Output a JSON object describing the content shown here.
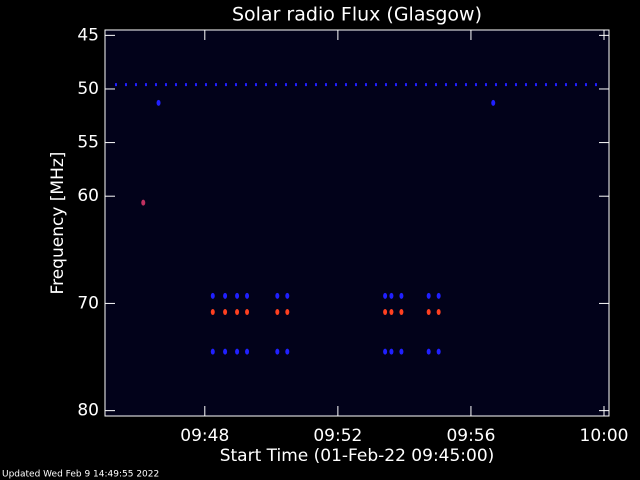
{
  "chart_data": {
    "type": "scatter",
    "title": "Solar radio Flux (Glasgow)",
    "x_label": "Start Time (01-Feb-22 09:45:00)",
    "y_label": "Frequency [MHz]",
    "footer": "Updated Wed Feb  9 14:49:55 2022",
    "xlim": [
      0,
      15.15
    ],
    "xticks": [
      {
        "value": 3,
        "label": "09:48"
      },
      {
        "value": 7,
        "label": "09:52"
      },
      {
        "value": 11,
        "label": "09:56"
      },
      {
        "value": 15,
        "label": "10:00"
      }
    ],
    "ylim": [
      80.5,
      44.5
    ],
    "yticks": [
      45,
      50,
      55,
      60,
      70,
      80
    ],
    "series": [
      {
        "mode": "line",
        "color": "#2020ff",
        "x": [
          0.3,
          15.0
        ],
        "values": [
          49.6,
          49.6
        ]
      },
      {
        "mode": "points",
        "color": "#2020ff",
        "x": [
          1.61,
          11.67
        ],
        "values": [
          51.3,
          51.3
        ]
      },
      {
        "mode": "points",
        "color": "#c03060",
        "x": [
          1.15
        ],
        "values": [
          60.6
        ]
      },
      {
        "mode": "points",
        "color": "#2020ff",
        "x": [
          3.24,
          3.61,
          3.97,
          4.27,
          5.18,
          5.48,
          8.42,
          8.61,
          8.91,
          9.73,
          10.03
        ],
        "values": [
          69.3,
          69.3,
          69.3,
          69.3,
          69.3,
          69.3,
          69.3,
          69.3,
          69.3,
          69.3,
          69.3
        ]
      },
      {
        "mode": "points",
        "color": "#ff4020",
        "x": [
          3.24,
          3.61,
          3.97,
          4.27,
          5.18,
          5.48,
          8.42,
          8.61,
          8.91,
          9.73,
          10.03
        ],
        "values": [
          70.8,
          70.8,
          70.8,
          70.8,
          70.8,
          70.8,
          70.8,
          70.8,
          70.8,
          70.8,
          70.8
        ]
      },
      {
        "mode": "points",
        "color": "#2020ff",
        "x": [
          3.24,
          3.61,
          3.97,
          4.27,
          5.18,
          5.48,
          8.42,
          8.61,
          8.91,
          9.73,
          10.03
        ],
        "values": [
          74.5,
          74.5,
          74.5,
          74.5,
          74.5,
          74.5,
          74.5,
          74.5,
          74.5,
          74.5,
          74.5
        ]
      }
    ]
  }
}
